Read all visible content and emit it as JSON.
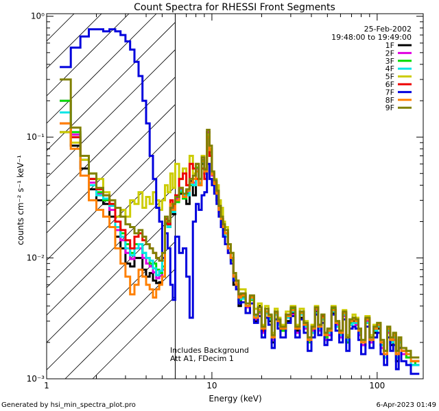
{
  "chart_data": {
    "type": "line",
    "title": "Count Spectra for RHESSI Front Segments",
    "xlabel": "Energy (keV)",
    "ylabel": "counts cm⁻² s⁻¹ keV⁻¹",
    "xscale": "log",
    "yscale": "log",
    "xlim": [
      1,
      190
    ],
    "ylim": [
      0.001,
      1.05
    ],
    "x_ticks": [
      {
        "value": 1,
        "label": "1"
      },
      {
        "value": 10,
        "label": "10"
      },
      {
        "value": 100,
        "label": "100"
      }
    ],
    "y_ticks": [
      {
        "value": 0.001,
        "label": "10⁻³"
      },
      {
        "value": 0.01,
        "label": "10⁻²"
      },
      {
        "value": 0.1,
        "label": "10⁻¹"
      },
      {
        "value": 1,
        "label": "10⁰"
      }
    ],
    "date": "25-Feb-2002",
    "time_range": "19:48:00 to 19:49:00",
    "legend_position": "top-right",
    "shaded_region": {
      "x_from": 1,
      "x_to": 6.0,
      "pattern": "diagonal hatching",
      "description": "attenuated / excluded energies"
    },
    "annotations": [
      "Includes Background",
      "Att A1, FDecim 1"
    ],
    "footer_left": "Generated by hsi_min_spectra_plot.pro",
    "footer_right": "6-Apr-2023 01:49",
    "edges": [
      1.2,
      1.4,
      1.6,
      1.8,
      2.0,
      2.2,
      2.4,
      2.6,
      2.8,
      3.0,
      3.2,
      3.4,
      3.6,
      3.8,
      4.0,
      4.2,
      4.4,
      4.6,
      4.8,
      5.0,
      5.2,
      5.4,
      5.6,
      5.8,
      6.0,
      6.33,
      6.67,
      7.0,
      7.33,
      7.67,
      8.0,
      8.33,
      8.67,
      9.0,
      9.33,
      9.67,
      10.0,
      10.33,
      10.67,
      11.0,
      11.33,
      11.67,
      12.0,
      12.5,
      13.0,
      13.5,
      14.0,
      14.5,
      15.0,
      16.0,
      17.0,
      18.0,
      19.0,
      20.0,
      21.0,
      22.0,
      23.0,
      24.0,
      25.0,
      26.0,
      28.0,
      30.0,
      32.0,
      34.0,
      36.0,
      38.0,
      40.0,
      42.0,
      44.0,
      46.0,
      48.0,
      50.0,
      53.0,
      56.0,
      59.0,
      62.0,
      65.0,
      68.0,
      71.0,
      74.0,
      77.0,
      80.0,
      85.0,
      90.0,
      95.0,
      100.0,
      105.0,
      110.0,
      115.0,
      120.0,
      125.0,
      130.0,
      135.0,
      140.0,
      150.0,
      160.0,
      170.0,
      180.0
    ],
    "series": [
      {
        "name": "1F",
        "color": "#000000",
        "values": [
          0.11,
          0.085,
          0.055,
          0.037,
          0.03,
          0.028,
          0.022,
          0.015,
          0.012,
          0.009,
          0.0085,
          0.01,
          0.01,
          0.008,
          0.007,
          0.0075,
          0.0065,
          0.0062,
          0.0063,
          0.007,
          0.02,
          0.018,
          0.026,
          0.023,
          0.03,
          0.034,
          0.032,
          0.028,
          0.043,
          0.033,
          0.055,
          0.04,
          0.06,
          0.05,
          0.11,
          0.07,
          0.05,
          0.043,
          0.03,
          0.025,
          0.02,
          0.018,
          0.016,
          0.012,
          0.01,
          0.006,
          0.006,
          0.004,
          0.005,
          0.0035,
          0.0045,
          0.003,
          0.004,
          0.0025,
          0.0035,
          0.003,
          0.002,
          0.0035,
          0.003,
          0.0025,
          0.003,
          0.0035,
          0.0025,
          0.0032,
          0.0028,
          0.0021,
          0.0024,
          0.0036,
          0.0027,
          0.0031,
          0.0022,
          0.0023,
          0.0035,
          0.0027,
          0.0024,
          0.0034,
          0.002,
          0.0028,
          0.003,
          0.0028,
          0.0024,
          0.0019,
          0.0029,
          0.002,
          0.0024,
          0.0026,
          0.0019,
          0.0015,
          0.0025,
          0.0019,
          0.0022,
          0.0014,
          0.002,
          0.0016,
          0.0016,
          0.0013,
          0.0013
        ]
      },
      {
        "name": "2F",
        "color": "#e000e0",
        "values": [
          0.2,
          0.105,
          0.065,
          0.042,
          0.034,
          0.03,
          0.025,
          0.017,
          0.014,
          0.011,
          0.0098,
          0.012,
          0.012,
          0.01,
          0.009,
          0.0085,
          0.0076,
          0.0068,
          0.0071,
          0.008,
          0.021,
          0.019,
          0.025,
          0.026,
          0.031,
          0.037,
          0.032,
          0.035,
          0.042,
          0.042,
          0.055,
          0.04,
          0.065,
          0.052,
          0.11,
          0.08,
          0.048,
          0.041,
          0.034,
          0.024,
          0.021,
          0.018,
          0.016,
          0.011,
          0.01,
          0.007,
          0.0058,
          0.0046,
          0.0047,
          0.0039,
          0.0048,
          0.0031,
          0.0035,
          0.0024,
          0.0035,
          0.0031,
          0.0021,
          0.0035,
          0.0029,
          0.0026,
          0.0032,
          0.0034,
          0.0024,
          0.0034,
          0.0026,
          0.0021,
          0.0025,
          0.0037,
          0.0025,
          0.0032,
          0.0021,
          0.0023,
          0.0037,
          0.0028,
          0.0022,
          0.0033,
          0.0021,
          0.0028,
          0.0029,
          0.0028,
          0.0023,
          0.0019,
          0.003,
          0.002,
          0.0026,
          0.0027,
          0.0018,
          0.0015,
          0.0024,
          0.002,
          0.0021,
          0.0015,
          0.002,
          0.0016,
          0.0015,
          0.0013,
          0.0013
        ]
      },
      {
        "name": "3F",
        "color": "#00dd00",
        "values": [
          0.2,
          0.11,
          0.07,
          0.045,
          0.035,
          0.03,
          0.028,
          0.02,
          0.016,
          0.013,
          0.011,
          0.013,
          0.013,
          0.011,
          0.01,
          0.009,
          0.009,
          0.008,
          0.0075,
          0.0085,
          0.019,
          0.018,
          0.024,
          0.025,
          0.029,
          0.035,
          0.031,
          0.034,
          0.04,
          0.04,
          0.056,
          0.041,
          0.064,
          0.05,
          0.105,
          0.075,
          0.05,
          0.042,
          0.032,
          0.026,
          0.02,
          0.017,
          0.015,
          0.012,
          0.0095,
          0.0065,
          0.006,
          0.0045,
          0.0048,
          0.004,
          0.0045,
          0.0033,
          0.0036,
          0.0025,
          0.0036,
          0.0032,
          0.0022,
          0.0034,
          0.003,
          0.0025,
          0.0033,
          0.0038,
          0.0026,
          0.0035,
          0.0027,
          0.002,
          0.0026,
          0.0038,
          0.0026,
          0.0033,
          0.0022,
          0.0025,
          0.0038,
          0.0029,
          0.0023,
          0.0035,
          0.002,
          0.0029,
          0.0031,
          0.0029,
          0.0025,
          0.002,
          0.0031,
          0.0021,
          0.0025,
          0.0028,
          0.0019,
          0.0015,
          0.0025,
          0.002,
          0.0022,
          0.0015,
          0.0021,
          0.0017,
          0.0015,
          0.0013,
          0.0014
        ]
      },
      {
        "name": "4F",
        "color": "#00e5e5",
        "values": [
          0.16,
          0.1,
          0.065,
          0.04,
          0.033,
          0.031,
          0.027,
          0.018,
          0.015,
          0.012,
          0.0105,
          0.012,
          0.013,
          0.011,
          0.01,
          0.0095,
          0.0082,
          0.0072,
          0.0078,
          0.0095,
          0.02,
          0.018,
          0.026,
          0.024,
          0.03,
          0.036,
          0.033,
          0.033,
          0.041,
          0.04,
          0.052,
          0.042,
          0.062,
          0.05,
          0.1,
          0.078,
          0.05,
          0.04,
          0.033,
          0.025,
          0.021,
          0.017,
          0.015,
          0.012,
          0.0098,
          0.0068,
          0.006,
          0.0047,
          0.0046,
          0.004,
          0.0046,
          0.0033,
          0.0037,
          0.0026,
          0.0035,
          0.0031,
          0.0022,
          0.0034,
          0.0028,
          0.0026,
          0.0032,
          0.0036,
          0.0026,
          0.0034,
          0.0027,
          0.0021,
          0.0024,
          0.0035,
          0.0026,
          0.0031,
          0.0023,
          0.0024,
          0.0036,
          0.0027,
          0.0023,
          0.0034,
          0.0021,
          0.0028,
          0.0029,
          0.0029,
          0.0024,
          0.002,
          0.0029,
          0.0021,
          0.0025,
          0.0027,
          0.0019,
          0.0015,
          0.0025,
          0.002,
          0.0022,
          0.0015,
          0.002,
          0.0017,
          0.0016,
          0.0013,
          0.0013
        ]
      },
      {
        "name": "5F",
        "color": "#cccc00",
        "values": [
          0.11,
          0.09,
          0.065,
          0.05,
          0.045,
          0.035,
          0.03,
          0.022,
          0.025,
          0.022,
          0.03,
          0.028,
          0.035,
          0.026,
          0.032,
          0.028,
          0.035,
          0.03,
          0.025,
          0.03,
          0.04,
          0.035,
          0.05,
          0.038,
          0.06,
          0.045,
          0.055,
          0.04,
          0.07,
          0.05,
          0.06,
          0.045,
          0.07,
          0.055,
          0.105,
          0.08,
          0.05,
          0.045,
          0.04,
          0.03,
          0.026,
          0.02,
          0.018,
          0.013,
          0.011,
          0.0075,
          0.0065,
          0.0055,
          0.0055,
          0.0042,
          0.0048,
          0.0038,
          0.0042,
          0.0028,
          0.004,
          0.0034,
          0.0024,
          0.0038,
          0.0032,
          0.0028,
          0.0036,
          0.004,
          0.0028,
          0.0038,
          0.003,
          0.0022,
          0.0028,
          0.004,
          0.0028,
          0.0034,
          0.0024,
          0.0026,
          0.004,
          0.003,
          0.0025,
          0.0037,
          0.0023,
          0.0031,
          0.0034,
          0.0032,
          0.0026,
          0.0021,
          0.0033,
          0.0023,
          0.0028,
          0.0029,
          0.002,
          0.0017,
          0.0026,
          0.0021,
          0.0024,
          0.0016,
          0.0022,
          0.0018,
          0.0017,
          0.0014,
          0.0014
        ]
      },
      {
        "name": "6F",
        "color": "#ee0000",
        "values": [
          0.13,
          0.1,
          0.07,
          0.045,
          0.037,
          0.033,
          0.028,
          0.02,
          0.017,
          0.014,
          0.012,
          0.015,
          0.016,
          0.014,
          0.013,
          0.012,
          0.011,
          0.01,
          0.0095,
          0.01,
          0.021,
          0.019,
          0.03,
          0.027,
          0.033,
          0.045,
          0.05,
          0.04,
          0.06,
          0.055,
          0.045,
          0.04,
          0.055,
          0.045,
          0.1,
          0.07,
          0.049,
          0.042,
          0.035,
          0.026,
          0.021,
          0.018,
          0.016,
          0.012,
          0.01,
          0.007,
          0.006,
          0.0048,
          0.0049,
          0.004,
          0.0047,
          0.0032,
          0.0037,
          0.0025,
          0.0036,
          0.0033,
          0.0022,
          0.0035,
          0.003,
          0.0026,
          0.0034,
          0.0037,
          0.0026,
          0.0035,
          0.0028,
          0.0021,
          0.0026,
          0.0038,
          0.0027,
          0.0033,
          0.0023,
          0.0025,
          0.0037,
          0.0029,
          0.0024,
          0.0035,
          0.0022,
          0.003,
          0.0031,
          0.003,
          0.0025,
          0.002,
          0.0031,
          0.0022,
          0.0026,
          0.0028,
          0.002,
          0.0016,
          0.0026,
          0.0021,
          0.0023,
          0.0016,
          0.0021,
          0.0017,
          0.0016,
          0.0014,
          0.0014
        ]
      },
      {
        "name": "7F",
        "color": "#0000dd",
        "values": [
          0.38,
          0.55,
          0.68,
          0.78,
          0.78,
          0.75,
          0.78,
          0.75,
          0.7,
          0.62,
          0.53,
          0.42,
          0.32,
          0.2,
          0.13,
          0.07,
          0.045,
          0.026,
          0.02,
          0.01,
          0.016,
          0.012,
          0.006,
          0.0045,
          0.015,
          0.011,
          0.012,
          0.007,
          0.0032,
          0.02,
          0.028,
          0.025,
          0.033,
          0.035,
          0.06,
          0.045,
          0.04,
          0.034,
          0.028,
          0.022,
          0.018,
          0.015,
          0.013,
          0.011,
          0.009,
          0.0065,
          0.0055,
          0.0042,
          0.0043,
          0.0035,
          0.0042,
          0.0029,
          0.0033,
          0.0022,
          0.0032,
          0.0028,
          0.0018,
          0.0031,
          0.0026,
          0.0022,
          0.0029,
          0.0033,
          0.0022,
          0.0031,
          0.0024,
          0.0017,
          0.0022,
          0.0034,
          0.0023,
          0.0029,
          0.0019,
          0.0021,
          0.0034,
          0.0025,
          0.002,
          0.0031,
          0.0017,
          0.0026,
          0.0027,
          0.0026,
          0.0021,
          0.0016,
          0.0027,
          0.0018,
          0.0022,
          0.0024,
          0.0016,
          0.0013,
          0.0022,
          0.0017,
          0.0019,
          0.0012,
          0.0018,
          0.0014,
          0.0013,
          0.0011,
          0.0011
        ]
      },
      {
        "name": "8F",
        "color": "#ff8000",
        "values": [
          0.13,
          0.08,
          0.048,
          0.03,
          0.025,
          0.022,
          0.018,
          0.012,
          0.009,
          0.007,
          0.005,
          0.006,
          0.008,
          0.007,
          0.006,
          0.0055,
          0.0047,
          0.0055,
          0.006,
          0.007,
          0.02,
          0.02,
          0.028,
          0.025,
          0.03,
          0.038,
          0.032,
          0.036,
          0.042,
          0.045,
          0.052,
          0.04,
          0.063,
          0.052,
          0.1,
          0.078,
          0.049,
          0.041,
          0.034,
          0.025,
          0.021,
          0.018,
          0.016,
          0.012,
          0.01,
          0.007,
          0.006,
          0.0047,
          0.0049,
          0.004,
          0.0047,
          0.0032,
          0.0037,
          0.0026,
          0.0036,
          0.0033,
          0.0022,
          0.0035,
          0.003,
          0.0026,
          0.0033,
          0.0037,
          0.0026,
          0.0035,
          0.0028,
          0.0021,
          0.0026,
          0.0038,
          0.0027,
          0.0032,
          0.0023,
          0.0025,
          0.0037,
          0.0029,
          0.0024,
          0.0035,
          0.0022,
          0.003,
          0.0031,
          0.003,
          0.0025,
          0.002,
          0.0031,
          0.0021,
          0.0026,
          0.0028,
          0.002,
          0.0016,
          0.0026,
          0.0021,
          0.0023,
          0.0016,
          0.0021,
          0.0017,
          0.0016,
          0.0014,
          0.0014
        ]
      },
      {
        "name": "9F",
        "color": "#808000",
        "values": [
          0.3,
          0.12,
          0.07,
          0.05,
          0.038,
          0.033,
          0.03,
          0.026,
          0.022,
          0.019,
          0.018,
          0.016,
          0.017,
          0.015,
          0.013,
          0.012,
          0.011,
          0.01,
          0.0095,
          0.011,
          0.022,
          0.02,
          0.026,
          0.028,
          0.032,
          0.038,
          0.034,
          0.037,
          0.045,
          0.048,
          0.06,
          0.045,
          0.068,
          0.054,
          0.115,
          0.085,
          0.052,
          0.044,
          0.036,
          0.027,
          0.022,
          0.019,
          0.017,
          0.013,
          0.011,
          0.0075,
          0.0065,
          0.005,
          0.0051,
          0.0042,
          0.0049,
          0.0034,
          0.0039,
          0.0027,
          0.0038,
          0.0034,
          0.0023,
          0.0036,
          0.0031,
          0.0027,
          0.0034,
          0.0039,
          0.0027,
          0.0036,
          0.0029,
          0.0022,
          0.0027,
          0.0039,
          0.0028,
          0.0034,
          0.0024,
          0.0026,
          0.0039,
          0.003,
          0.0025,
          0.0036,
          0.0022,
          0.0031,
          0.0032,
          0.0031,
          0.0026,
          0.0021,
          0.0032,
          0.0022,
          0.0027,
          0.0029,
          0.0021,
          0.0017,
          0.0027,
          0.0022,
          0.0024,
          0.0017,
          0.0022,
          0.0018,
          0.0017,
          0.0015,
          0.0015
        ]
      }
    ]
  }
}
